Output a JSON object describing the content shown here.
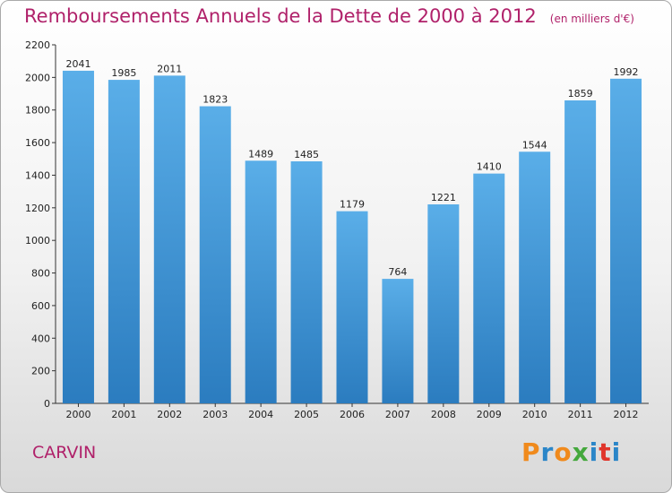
{
  "header": {
    "title": "Remboursements Annuels de la Dette de 2000 à 2012",
    "unit": "(en milliers d'€)"
  },
  "footer": {
    "commune": "CARVIN",
    "logo": "Proxiti"
  },
  "colors": {
    "title": "#b0216a",
    "bar_top": "#5aaee8",
    "bar_bottom": "#2b7cbf",
    "logo_letters": [
      "#f08a1c",
      "#2b86c8",
      "#f08a1c",
      "#44a83c",
      "#2b86c8",
      "#e0352b",
      "#2b86c8"
    ]
  },
  "chart_data": {
    "type": "bar",
    "categories": [
      "2000",
      "2001",
      "2002",
      "2003",
      "2004",
      "2005",
      "2006",
      "2007",
      "2008",
      "2009",
      "2010",
      "2011",
      "2012"
    ],
    "values": [
      2041,
      1985,
      2011,
      1823,
      1489,
      1485,
      1179,
      764,
      1221,
      1410,
      1544,
      1859,
      1992
    ],
    "title": "Remboursements Annuels de la Dette de 2000 à 2012",
    "ylim": [
      0,
      2200
    ],
    "yticks": [
      0,
      200,
      400,
      600,
      800,
      1000,
      1200,
      1400,
      1600,
      1800,
      2000,
      2200
    ],
    "grid": false,
    "data_labels": true
  }
}
